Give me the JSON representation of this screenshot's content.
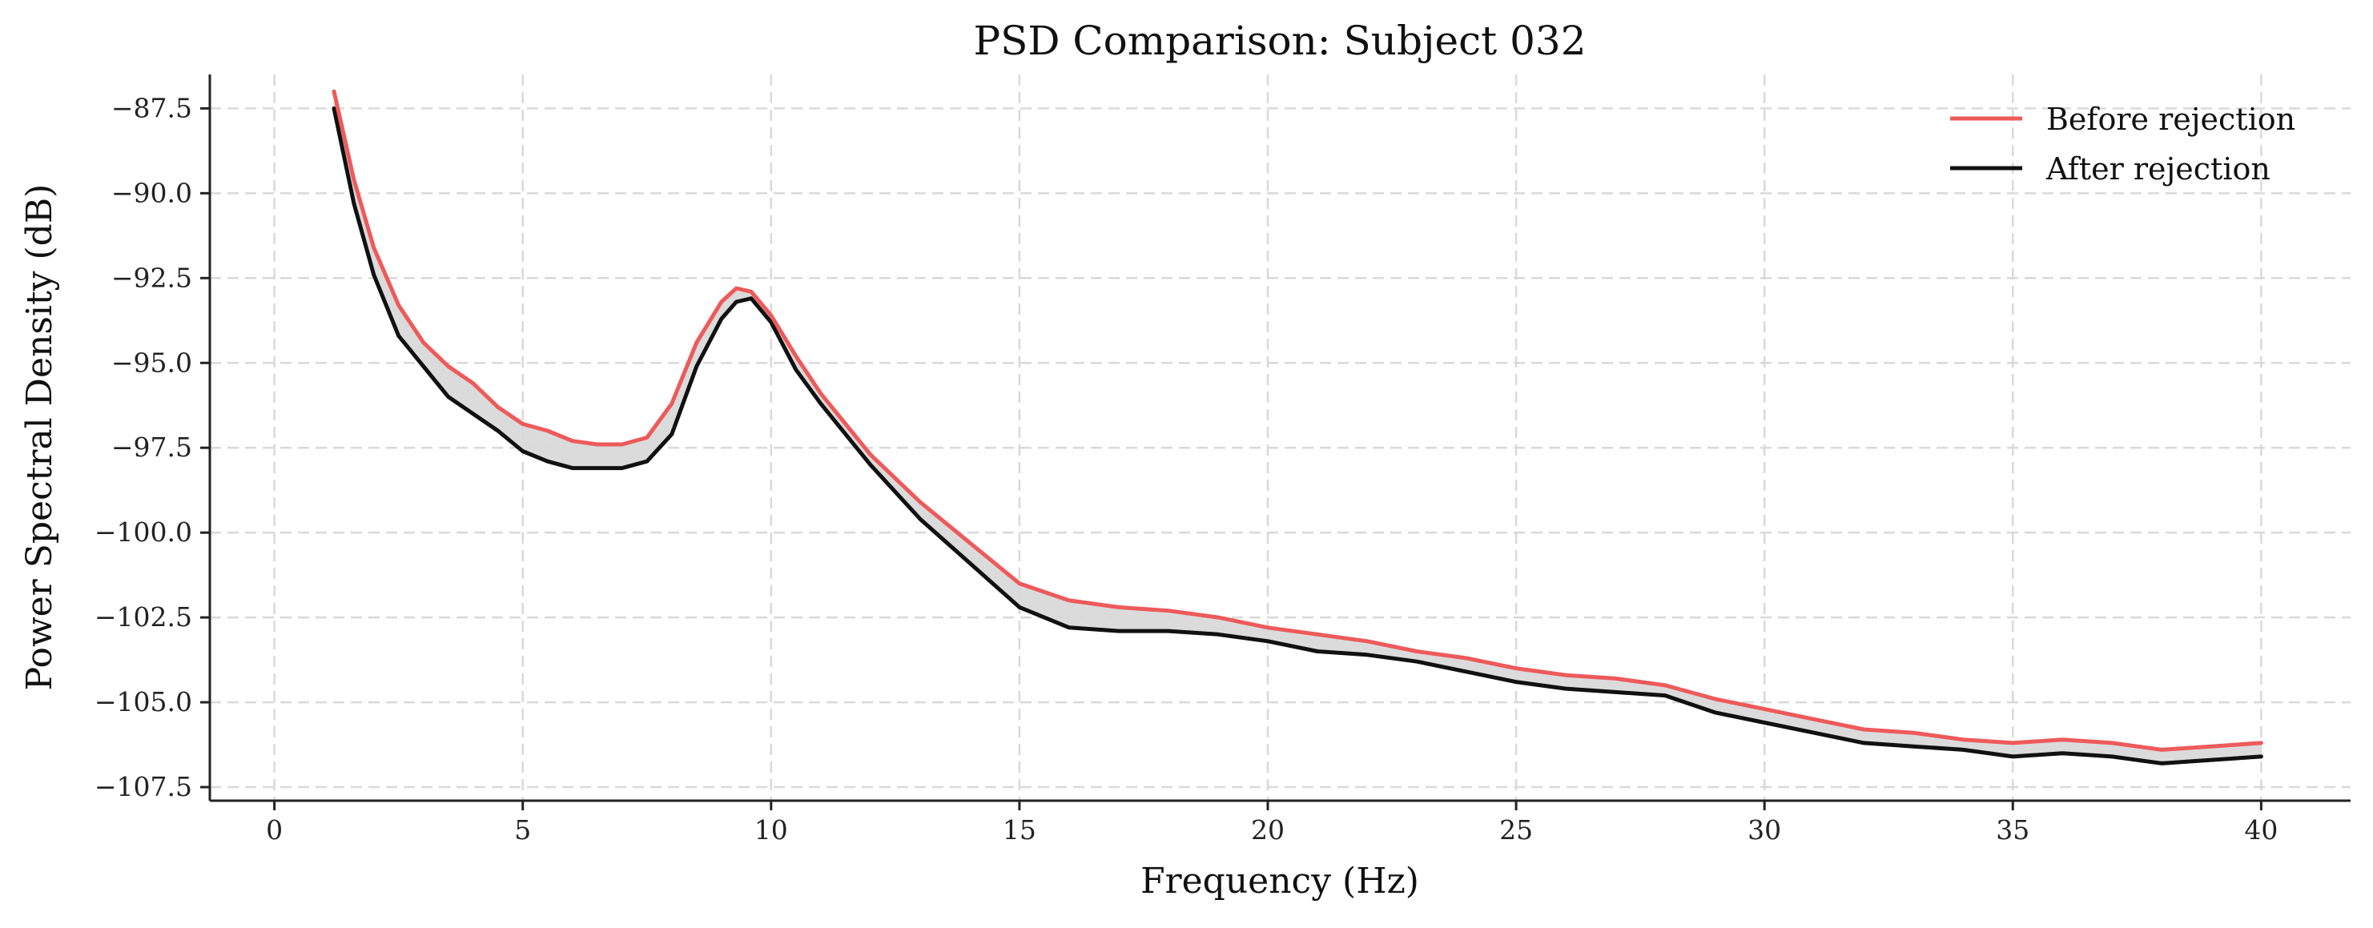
{
  "chart_data": {
    "type": "line",
    "title": "PSD Comparison: Subject 032",
    "xlabel": "Frequency (Hz)",
    "ylabel": "Power Spectral Density (dB)",
    "xlim": [
      -1.3,
      41.8
    ],
    "ylim": [
      -107.9,
      -86.5
    ],
    "xticks": [
      0,
      5,
      10,
      15,
      20,
      25,
      30,
      35,
      40
    ],
    "xtick_labels": [
      "0",
      "5",
      "10",
      "15",
      "20",
      "25",
      "30",
      "35",
      "40"
    ],
    "yticks": [
      -87.5,
      -90.0,
      -92.5,
      -95.0,
      -97.5,
      -100.0,
      -102.5,
      -105.0,
      -107.5
    ],
    "ytick_labels": [
      "−87.5",
      "−90.0",
      "−92.5",
      "−95.0",
      "−97.5",
      "−100.0",
      "−102.5",
      "−105.0",
      "−107.5"
    ],
    "grid": true,
    "legend_position": "top-right",
    "fill_between_series": true,
    "fill_color": "#d9d9d9",
    "x": [
      1.2,
      1.6,
      2.0,
      2.5,
      3.0,
      3.5,
      4.0,
      4.5,
      5.0,
      5.5,
      6.0,
      6.5,
      7.0,
      7.5,
      8.0,
      8.5,
      9.0,
      9.3,
      9.6,
      10.0,
      10.5,
      11.0,
      11.5,
      12.0,
      13.0,
      14.0,
      15.0,
      16.0,
      17.0,
      18.0,
      19.0,
      20.0,
      21.0,
      22.0,
      23.0,
      24.0,
      25.0,
      26.0,
      27.0,
      28.0,
      29.0,
      30.0,
      31.0,
      32.0,
      33.0,
      34.0,
      35.0,
      36.0,
      37.0,
      38.0,
      39.0,
      40.0
    ],
    "series": [
      {
        "name": "Before rejection",
        "color": "#ee5a5a",
        "values": [
          -87.0,
          -89.6,
          -91.6,
          -93.3,
          -94.4,
          -95.1,
          -95.6,
          -96.3,
          -96.8,
          -97.0,
          -97.3,
          -97.4,
          -97.4,
          -97.2,
          -96.2,
          -94.4,
          -93.2,
          -92.8,
          -92.9,
          -93.6,
          -94.8,
          -95.9,
          -96.8,
          -97.7,
          -99.1,
          -100.3,
          -101.5,
          -102.0,
          -102.2,
          -102.3,
          -102.5,
          -102.8,
          -103.0,
          -103.2,
          -103.5,
          -103.7,
          -104.0,
          -104.2,
          -104.3,
          -104.5,
          -104.9,
          -105.2,
          -105.5,
          -105.8,
          -105.9,
          -106.1,
          -106.2,
          -106.1,
          -106.2,
          -106.4,
          -106.3,
          -106.2
        ]
      },
      {
        "name": "After rejection",
        "color": "#111111",
        "values": [
          -87.5,
          -90.3,
          -92.4,
          -94.2,
          -95.1,
          -96.0,
          -96.5,
          -97.0,
          -97.6,
          -97.9,
          -98.1,
          -98.1,
          -98.1,
          -97.9,
          -97.1,
          -95.1,
          -93.7,
          -93.2,
          -93.1,
          -93.8,
          -95.2,
          -96.2,
          -97.1,
          -98.0,
          -99.6,
          -100.9,
          -102.2,
          -102.8,
          -102.9,
          -102.9,
          -103.0,
          -103.2,
          -103.5,
          -103.6,
          -103.8,
          -104.1,
          -104.4,
          -104.6,
          -104.7,
          -104.8,
          -105.3,
          -105.6,
          -105.9,
          -106.2,
          -106.3,
          -106.4,
          -106.6,
          -106.5,
          -106.6,
          -106.8,
          -106.7,
          -106.6
        ]
      }
    ]
  }
}
